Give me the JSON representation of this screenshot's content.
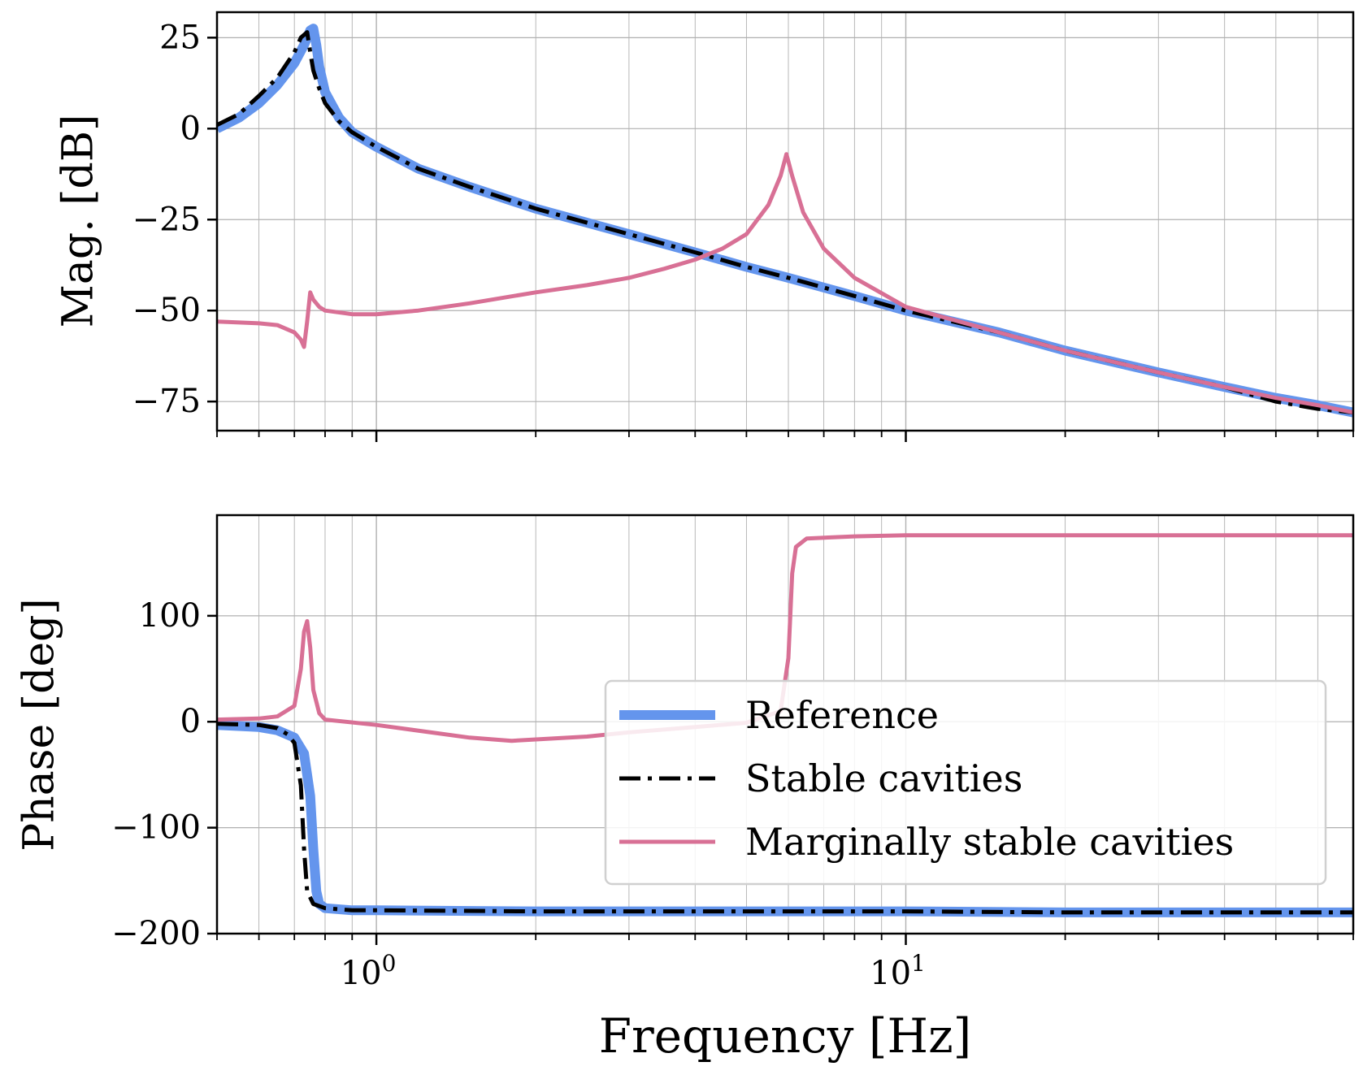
{
  "figure": {
    "xlabel": "Frequency [Hz]",
    "x_tick_labels": [
      {
        "base": "10",
        "exp": "0",
        "value": 1
      },
      {
        "base": "10",
        "exp": "1",
        "value": 10
      }
    ]
  },
  "colors": {
    "reference": "#6495ed",
    "stable": "#000000",
    "marginal": "#d87095",
    "grid": "#b0b0b0"
  },
  "chart_data": [
    {
      "type": "line",
      "panel": "magnitude",
      "ylabel": "Mag. [dB]",
      "xscale": "log",
      "xlim": [
        0.5,
        70
      ],
      "ylim": [
        -83,
        32
      ],
      "yticks": [
        25,
        0,
        -25,
        -50,
        -75
      ],
      "ytick_labels": [
        "25",
        "0",
        "−25",
        "−50",
        "−75"
      ],
      "series": [
        {
          "name": "Reference",
          "x": [
            0.5,
            0.55,
            0.6,
            0.65,
            0.7,
            0.73,
            0.75,
            0.76,
            0.77,
            0.78,
            0.8,
            0.85,
            0.9,
            1.0,
            1.2,
            1.5,
            2,
            3,
            4,
            5,
            6,
            8,
            10,
            15,
            20,
            30,
            40,
            50,
            60,
            70
          ],
          "y": [
            0,
            3,
            7,
            12,
            18,
            23,
            27,
            27.5,
            23,
            17,
            10,
            3,
            -1,
            -5,
            -11,
            -16,
            -22,
            -29,
            -34,
            -38,
            -41,
            -46,
            -50,
            -56,
            -61,
            -67,
            -71,
            -74,
            -76,
            -78
          ]
        },
        {
          "name": "Stable cavities",
          "x": [
            0.5,
            0.55,
            0.6,
            0.65,
            0.7,
            0.72,
            0.74,
            0.75,
            0.76,
            0.78,
            0.8,
            0.85,
            0.9,
            1.0,
            1.2,
            1.5,
            2,
            3,
            4,
            5,
            6,
            8,
            10,
            15,
            20,
            30,
            40,
            50,
            60,
            70
          ],
          "y": [
            1,
            4,
            9,
            14,
            21,
            25,
            26.5,
            21,
            16,
            11,
            7,
            2,
            -1,
            -5,
            -11,
            -16,
            -22,
            -29,
            -34,
            -38,
            -41,
            -46,
            -50,
            -56,
            -61,
            -67,
            -71,
            -75,
            -77,
            -78
          ]
        },
        {
          "name": "Marginally stable cavities",
          "x": [
            0.5,
            0.6,
            0.65,
            0.7,
            0.72,
            0.73,
            0.74,
            0.75,
            0.76,
            0.78,
            0.8,
            0.9,
            1.0,
            1.2,
            1.5,
            2,
            2.5,
            3,
            3.5,
            4,
            4.5,
            5,
            5.5,
            5.8,
            5.95,
            6.1,
            6.4,
            7,
            8,
            10,
            15,
            20,
            30,
            40,
            50,
            60,
            70
          ],
          "y": [
            -53,
            -53.5,
            -54,
            -56,
            -58,
            -60,
            -53,
            -45,
            -47,
            -49,
            -50,
            -51,
            -51,
            -50,
            -48,
            -45,
            -43,
            -41,
            -38.5,
            -36,
            -33,
            -29,
            -21,
            -13,
            -7,
            -13,
            -23,
            -33,
            -41,
            -49,
            -56,
            -61,
            -67,
            -71,
            -74,
            -76,
            -78
          ]
        }
      ]
    },
    {
      "type": "line",
      "panel": "phase",
      "ylabel": "Phase [deg]",
      "xscale": "log",
      "xlim": [
        0.5,
        70
      ],
      "ylim": [
        -200,
        195
      ],
      "yticks": [
        100,
        0,
        -100,
        -200
      ],
      "ytick_labels": [
        "100",
        "0",
        "−100",
        "−200"
      ],
      "series": [
        {
          "name": "Reference",
          "x": [
            0.5,
            0.6,
            0.65,
            0.7,
            0.73,
            0.75,
            0.76,
            0.77,
            0.78,
            0.8,
            0.9,
            1,
            2,
            5,
            10,
            20,
            40,
            70
          ],
          "y": [
            -3,
            -5,
            -8,
            -15,
            -30,
            -70,
            -120,
            -160,
            -172,
            -176,
            -178,
            -178,
            -179,
            -179,
            -179,
            -180,
            -180,
            -180
          ]
        },
        {
          "name": "Stable cavities",
          "x": [
            0.5,
            0.6,
            0.65,
            0.68,
            0.7,
            0.72,
            0.73,
            0.74,
            0.76,
            0.8,
            0.9,
            1,
            2,
            5,
            10,
            20,
            40,
            70
          ],
          "y": [
            -2,
            -3,
            -6,
            -12,
            -20,
            -60,
            -120,
            -160,
            -172,
            -176,
            -178,
            -178,
            -179,
            -179,
            -179,
            -180,
            -180,
            -180
          ]
        },
        {
          "name": "Marginally stable cavities",
          "x": [
            0.5,
            0.6,
            0.65,
            0.7,
            0.72,
            0.73,
            0.74,
            0.75,
            0.76,
            0.78,
            0.8,
            1,
            1.5,
            1.8,
            2.5,
            3,
            4,
            5,
            5.8,
            6.0,
            6.1,
            6.2,
            6.5,
            8,
            10,
            20,
            40,
            70
          ],
          "y": [
            2,
            3,
            5,
            15,
            50,
            85,
            95,
            70,
            30,
            8,
            2,
            -3,
            -15,
            -18,
            -14,
            -10,
            -5,
            -1,
            10,
            60,
            140,
            165,
            173,
            175,
            176,
            176,
            176,
            176
          ]
        }
      ]
    }
  ],
  "legend": {
    "position": "lower-right of phase panel",
    "entries": [
      {
        "name": "Reference",
        "style": "solid-thick"
      },
      {
        "name": "Stable cavities",
        "style": "dashdot"
      },
      {
        "name": "Marginally stable cavities",
        "style": "solid"
      }
    ]
  }
}
